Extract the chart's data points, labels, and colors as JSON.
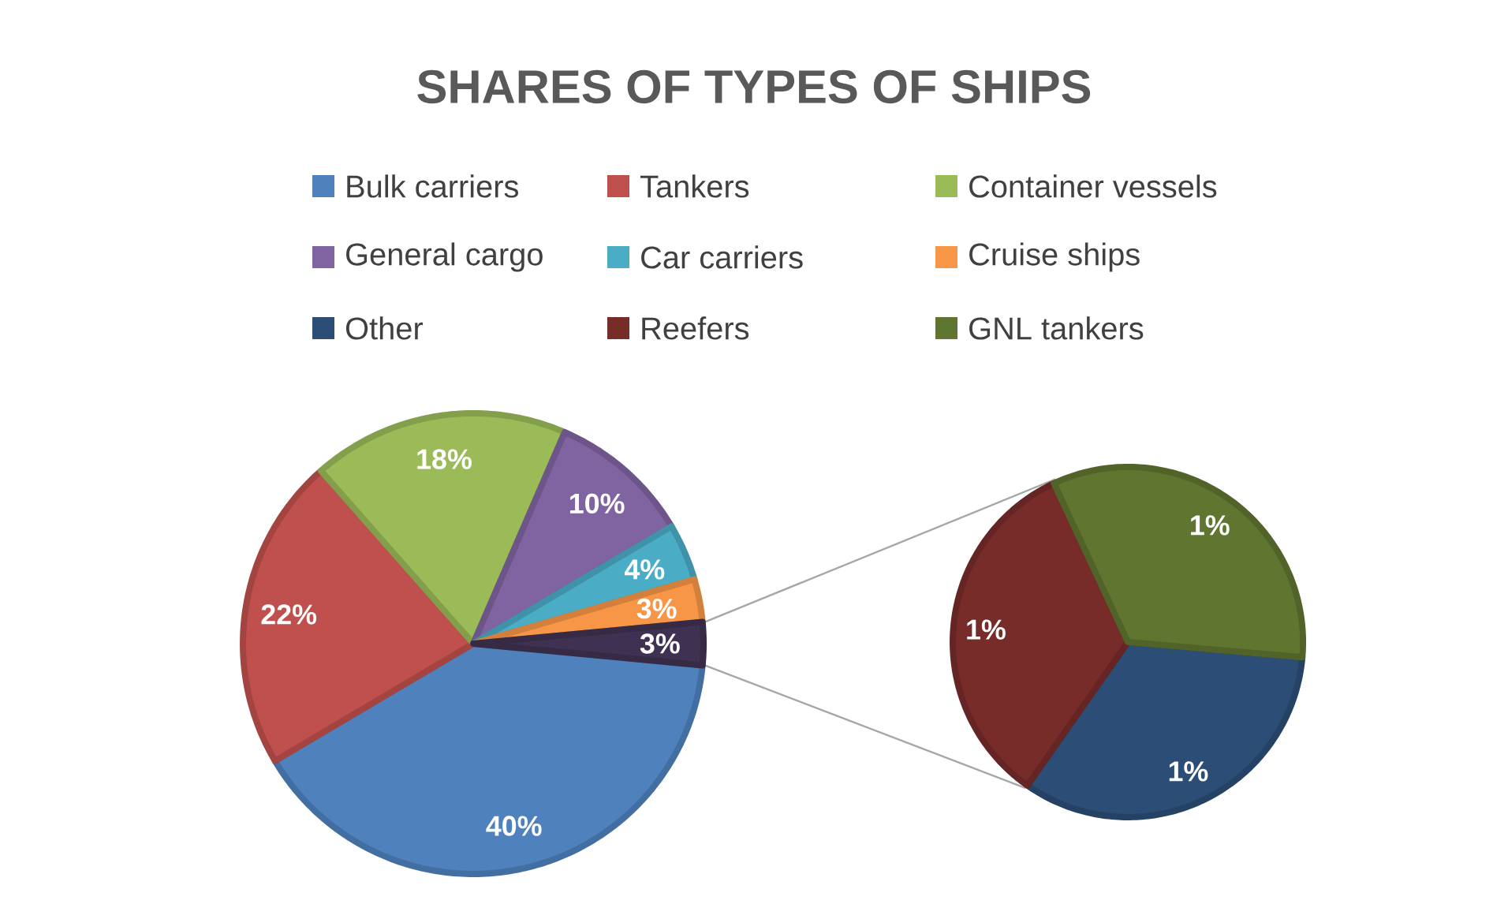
{
  "chart_data": [
    {
      "type": "pie",
      "title": "SHARES OF TYPES OF SHIPS",
      "legend": "top",
      "categories": [
        "Bulk carriers",
        "Tankers",
        "Container vessels",
        "General cargo",
        "Car carriers",
        "Cruise ships",
        null
      ],
      "values": [
        40,
        22,
        18,
        10,
        4,
        3,
        3
      ],
      "colors": [
        "#4f81bd",
        "#c0504d",
        "#9bbb59",
        "#8064a2",
        "#4bacc6",
        "#f79646",
        "#3f3151"
      ],
      "value_labels": [
        "40%",
        "22%",
        "18%",
        "10%",
        "4%",
        "3%",
        "3%"
      ]
    },
    {
      "type": "pie",
      "legend": "top",
      "categories": [
        "Other",
        "Reefers",
        "GNL tankers"
      ],
      "values": [
        1,
        1,
        1
      ],
      "colors": [
        "#2c4d75",
        "#772c2a",
        "#5f7530"
      ],
      "value_labels": [
        "1%",
        "1%",
        "1%"
      ]
    }
  ]
}
